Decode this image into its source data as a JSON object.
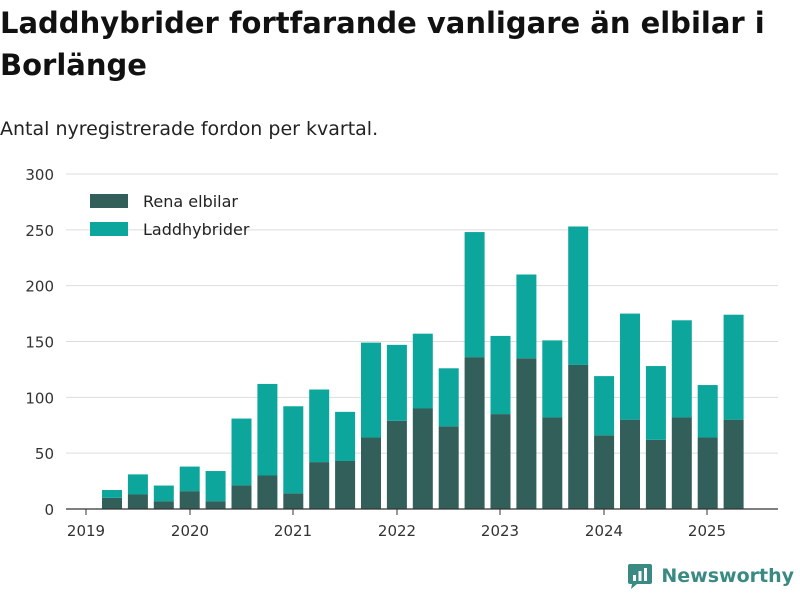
{
  "title": "Laddhybrider fortfarande vanligare än elbilar i Borlänge",
  "subtitle": "Antal nyregistrerade fordon per kvartal.",
  "brand": "Newsworthy",
  "chart_data": {
    "type": "bar",
    "stacked": true,
    "x_tick_labels": [
      "2019",
      "2020",
      "2021",
      "2022",
      "2023",
      "2024",
      "2025"
    ],
    "categories": [
      "2019 Q2",
      "2019 Q3",
      "2019 Q4",
      "2020 Q1",
      "2020 Q2",
      "2020 Q3",
      "2020 Q4",
      "2021 Q1",
      "2021 Q2",
      "2021 Q3",
      "2021 Q4",
      "2022 Q1",
      "2022 Q2",
      "2022 Q3",
      "2022 Q4",
      "2023 Q1",
      "2023 Q2",
      "2023 Q3",
      "2023 Q4",
      "2024 Q1",
      "2024 Q2",
      "2024 Q3",
      "2024 Q4",
      "2025 Q1",
      "2025 Q2"
    ],
    "series": [
      {
        "name": "Rena elbilar",
        "color": "#335f5b",
        "values": [
          10,
          13,
          7,
          16,
          7,
          21,
          30,
          14,
          42,
          43,
          64,
          79,
          90,
          74,
          136,
          85,
          135,
          82,
          129,
          66,
          80,
          62,
          82,
          64,
          80
        ]
      },
      {
        "name": "Laddhybrider",
        "color": "#0ca69c",
        "values": [
          7,
          18,
          14,
          22,
          27,
          60,
          82,
          78,
          65,
          44,
          85,
          68,
          67,
          52,
          112,
          70,
          75,
          69,
          124,
          53,
          95,
          66,
          87,
          47,
          94
        ]
      }
    ],
    "ylim": [
      0,
      300
    ],
    "yticks": [
      0,
      50,
      100,
      150,
      200,
      250,
      300
    ],
    "legend": "top-left",
    "grid": true
  }
}
